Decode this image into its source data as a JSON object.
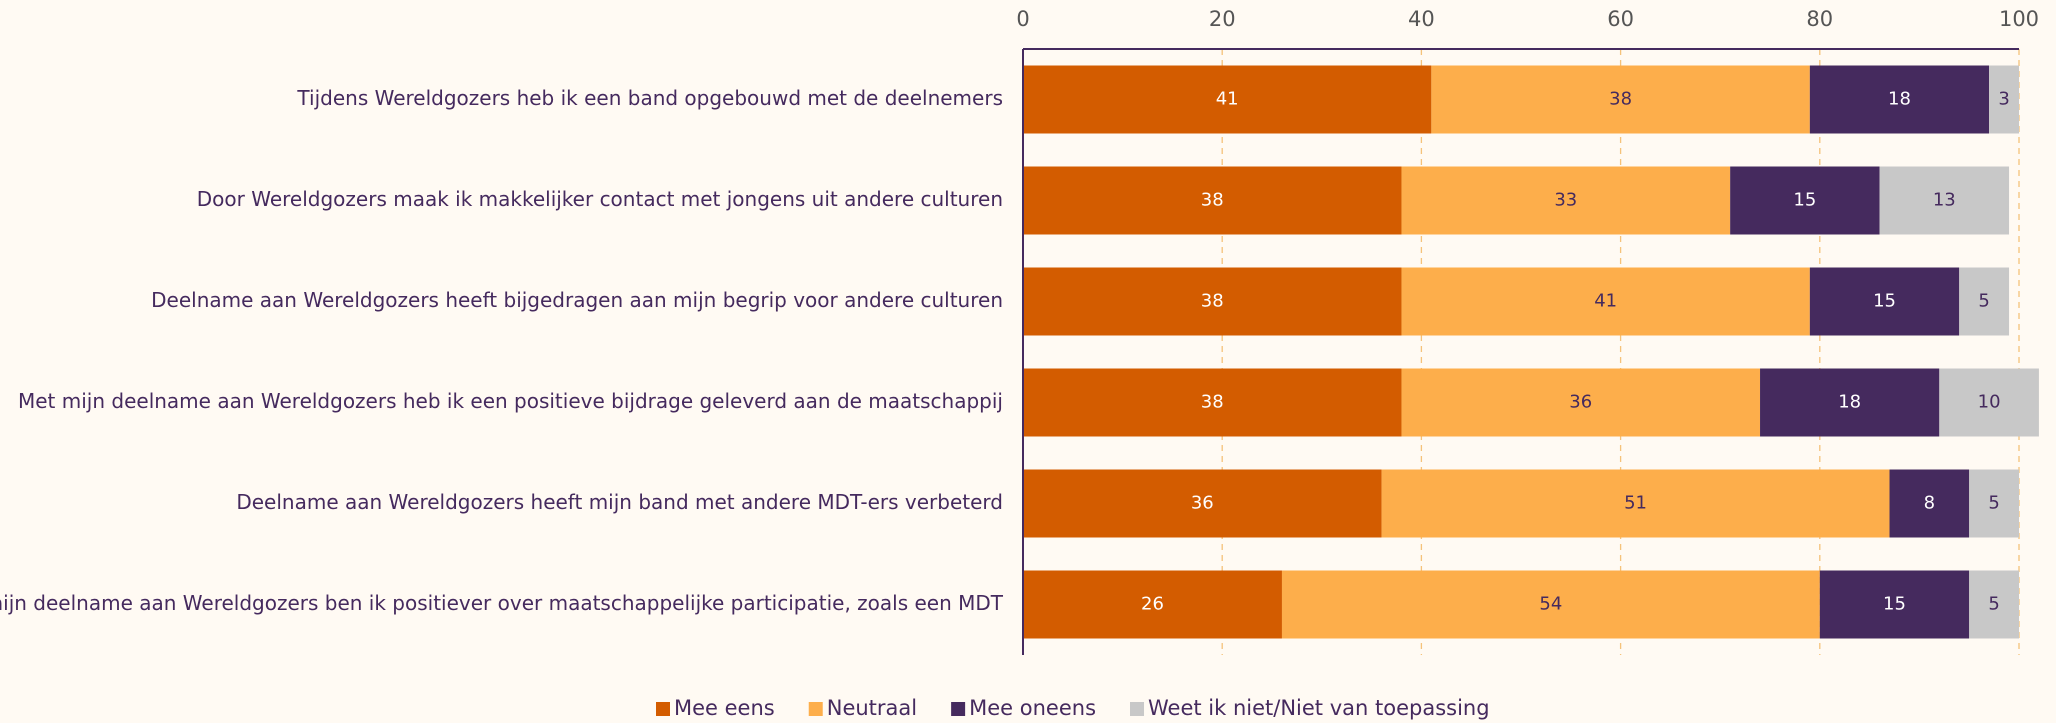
{
  "chart_data": {
    "type": "stacked-bar-horizontal",
    "categories": [
      "Tijdens Wereldgozers heb ik een band opgebouwd met de deelnemers",
      "Door Wereldgozers maak ik makkelijker contact met jongens uit andere culturen",
      "Deelname aan Wereldgozers heeft bijgedragen aan mijn begrip voor andere culturen",
      "Met mijn deelname aan Wereldgozers heb ik een positieve bijdrage geleverd aan de maatschappij",
      "Deelname aan Wereldgozers heeft mijn band met andere MDT-ers verbeterd",
      "Door mijn deelname aan Wereldgozers ben ik positiever over maatschappelijke participatie, zoals een MDT"
    ],
    "series": [
      {
        "name": "Mee eens",
        "color": "#d35c00",
        "label_color": "#ffffff",
        "values": [
          41,
          38,
          38,
          38,
          36,
          26
        ]
      },
      {
        "name": "Neutraal",
        "color": "#fdae4b",
        "label_color": "#452a5e",
        "values": [
          38,
          33,
          41,
          36,
          51,
          54
        ]
      },
      {
        "name": "Mee oneens",
        "color": "#452a5e",
        "label_color": "#ffffff",
        "values": [
          18,
          15,
          15,
          18,
          8,
          15
        ]
      },
      {
        "name": "Weet ik niet/Niet van toepassing",
        "color": "#c8c8c8",
        "label_color": "#452a5e",
        "values": [
          3,
          13,
          5,
          10,
          5,
          5
        ]
      }
    ],
    "xlim": [
      0,
      100
    ],
    "xticks": [
      0,
      20,
      40,
      60,
      80,
      100
    ],
    "grid": true,
    "legend": "bottom"
  }
}
